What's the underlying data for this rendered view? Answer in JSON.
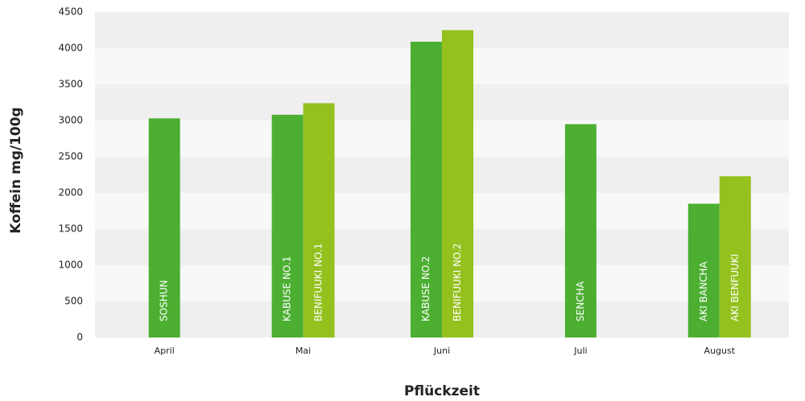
{
  "chart_data": {
    "type": "bar",
    "y_label": "Koffein mg/100g",
    "x_label": "Pflückzeit",
    "categories": [
      "April",
      "Mai",
      "Juni",
      "Juli",
      "August"
    ],
    "series": [
      {
        "color": "#4caf32",
        "values": [
          3030,
          3080,
          4090,
          2950,
          1850
        ],
        "bar_labels": [
          "SOSHUN",
          "KABUSE NO.1",
          "KABUSE NO.2",
          "SENCHA",
          "AKI BANCHA"
        ]
      },
      {
        "color": "#95c11f",
        "values": [
          null,
          3240,
          4250,
          null,
          2230
        ],
        "bar_labels": [
          null,
          "BENIFUUKI NO.1",
          "BENIFUUKI NO.2",
          null,
          "AKI BENFUUKI"
        ]
      }
    ],
    "ylim": [
      0,
      4500
    ],
    "yticks": [
      0,
      500,
      1000,
      1500,
      2000,
      2500,
      3000,
      3500,
      4000,
      4500
    ],
    "grid": true
  }
}
